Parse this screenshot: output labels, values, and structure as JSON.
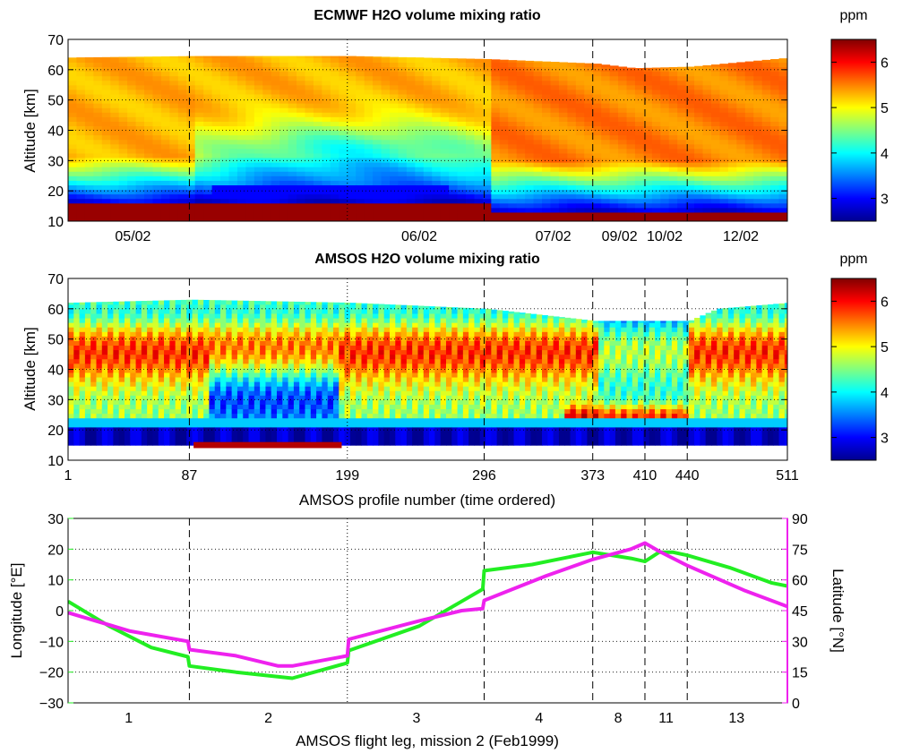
{
  "colors": {
    "longitude": "#22ee22",
    "latitude": "#ee22ee",
    "colormap": [
      "#00008f",
      "#0000ff",
      "#0080ff",
      "#00ffff",
      "#80ff80",
      "#ffff00",
      "#ff8000",
      "#ff0000",
      "#800000"
    ]
  },
  "chart_data": [
    {
      "id": "ecmwf",
      "type": "heatmap",
      "title": "ECMWF H2O volume mixing ratio",
      "xlabel": "",
      "ylabel": "Altitude [km]",
      "ylim": [
        10,
        70
      ],
      "yticks": [
        10,
        20,
        30,
        40,
        50,
        60,
        70
      ],
      "xlim": [
        1,
        511
      ],
      "xtick_labels": [
        {
          "x": 47,
          "label": "05/02"
        },
        {
          "x": 250,
          "label": "06/02"
        },
        {
          "x": 345,
          "label": "07/02"
        },
        {
          "x": 392,
          "label": "09/02"
        },
        {
          "x": 424,
          "label": "10/02"
        },
        {
          "x": 478,
          "label": "12/02"
        }
      ],
      "dashed_lines": [
        87,
        296,
        373,
        410,
        440
      ],
      "dotted_lines": [
        199
      ],
      "grid": true,
      "colorbar": {
        "label": "ppm",
        "range": [
          2.5,
          6.5
        ],
        "ticks": [
          3,
          4,
          5,
          6
        ]
      },
      "data_top_km": [
        {
          "x": 1,
          "top": 64
        },
        {
          "x": 87,
          "top": 64.5
        },
        {
          "x": 199,
          "top": 64.5
        },
        {
          "x": 296,
          "top": 63.5
        },
        {
          "x": 373,
          "top": 62
        },
        {
          "x": 400,
          "top": 60.5
        },
        {
          "x": 440,
          "top": 61
        },
        {
          "x": 511,
          "top": 64
        }
      ]
    },
    {
      "id": "amsos",
      "type": "heatmap",
      "title": "AMSOS H2O volume mixing ratio",
      "xlabel": "AMSOS profile number (time ordered)",
      "ylabel": "Altitude [km]",
      "ylim": [
        10,
        70
      ],
      "yticks": [
        10,
        20,
        30,
        40,
        50,
        60,
        70
      ],
      "xlim": [
        1,
        511
      ],
      "xticks": [
        1,
        87,
        199,
        296,
        373,
        410,
        440,
        511
      ],
      "dashed_lines": [
        87,
        296,
        373,
        410,
        440
      ],
      "dotted_lines": [
        199
      ],
      "grid": true,
      "colorbar": {
        "label": "ppm",
        "range": [
          2.5,
          6.5
        ],
        "ticks": [
          3,
          4,
          5,
          6
        ]
      },
      "data_top_km": [
        {
          "x": 1,
          "top": 62
        },
        {
          "x": 87,
          "top": 63
        },
        {
          "x": 199,
          "top": 62
        },
        {
          "x": 296,
          "top": 60
        },
        {
          "x": 373,
          "top": 56
        },
        {
          "x": 440,
          "top": 56
        },
        {
          "x": 460,
          "top": 60
        },
        {
          "x": 511,
          "top": 62
        }
      ],
      "data_bottom_km": 15
    },
    {
      "id": "track",
      "type": "line",
      "xlabel": "AMSOS flight leg, mission 2 (Feb1999)",
      "ylabel_left": "Longitude [°E]",
      "ylabel_right": "Latitude [°N]",
      "xlim": [
        1,
        511
      ],
      "ylim_left": [
        -30,
        30
      ],
      "yticks_left": [
        -30,
        -20,
        -10,
        0,
        10,
        20,
        30
      ],
      "ylim_right": [
        0,
        90
      ],
      "yticks_right": [
        0,
        15,
        30,
        45,
        60,
        75,
        90
      ],
      "leg_labels": [
        {
          "x": 44,
          "label": "1"
        },
        {
          "x": 143,
          "label": "2"
        },
        {
          "x": 248,
          "label": "3"
        },
        {
          "x": 335,
          "label": "4"
        },
        {
          "x": 391,
          "label": "8"
        },
        {
          "x": 425,
          "label": "11"
        },
        {
          "x": 475,
          "label": "13"
        }
      ],
      "dashed_lines": [
        87,
        296,
        373,
        410,
        440
      ],
      "dotted_lines": [
        199
      ],
      "grid": true,
      "series": [
        {
          "name": "Longitude [°E]",
          "axis": "left",
          "points": [
            [
              1,
              3
            ],
            [
              30,
              -5
            ],
            [
              60,
              -12
            ],
            [
              86,
              -15
            ],
            [
              87,
              -18
            ],
            [
              120,
              -20
            ],
            [
              160,
              -22
            ],
            [
              199,
              -17
            ],
            [
              200,
              -13
            ],
            [
              250,
              -5
            ],
            [
              280,
              3
            ],
            [
              295,
              7
            ],
            [
              296,
              13
            ],
            [
              330,
              15
            ],
            [
              373,
              19
            ],
            [
              400,
              17
            ],
            [
              410,
              16
            ],
            [
              420,
              19
            ],
            [
              430,
              19
            ],
            [
              440,
              18
            ],
            [
              470,
              14
            ],
            [
              500,
              9
            ],
            [
              511,
              8
            ]
          ]
        },
        {
          "name": "Latitude [°N]",
          "axis": "right",
          "points": [
            [
              1,
              44
            ],
            [
              45,
              35
            ],
            [
              86,
              30
            ],
            [
              87,
              26
            ],
            [
              120,
              23
            ],
            [
              150,
              18
            ],
            [
              160,
              18
            ],
            [
              199,
              23
            ],
            [
              200,
              31
            ],
            [
              250,
              40
            ],
            [
              280,
              45
            ],
            [
              295,
              46
            ],
            [
              296,
              50
            ],
            [
              340,
              62
            ],
            [
              373,
              70
            ],
            [
              400,
              75
            ],
            [
              410,
              78
            ],
            [
              420,
              74
            ],
            [
              440,
              67
            ],
            [
              480,
              55
            ],
            [
              511,
              47
            ]
          ]
        }
      ]
    }
  ]
}
